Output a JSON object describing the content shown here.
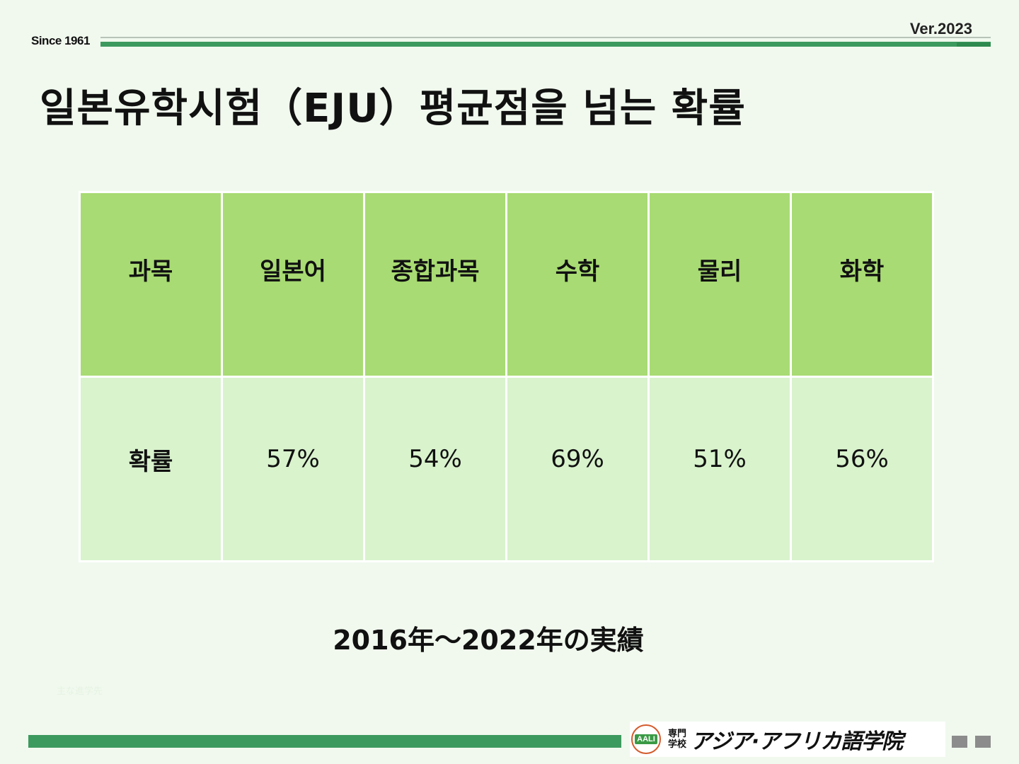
{
  "header": {
    "since": "Since 1961",
    "version": "Ver.2023"
  },
  "title": "일본유학시험（EJU）평균점을 넘는 확률",
  "table": {
    "header": [
      "과목",
      "일본어",
      "종합과목",
      "수학",
      "물리",
      "화학"
    ],
    "row": [
      "확률",
      "57%",
      "54%",
      "69%",
      "51%",
      "56%"
    ]
  },
  "period": "2016年〜2022年の実績",
  "faint_text": "主な進学先",
  "footer": {
    "logo_text": "AALI",
    "senmon_top": "専門",
    "senmon_bottom": "学校",
    "school_name": "アジア·アフリカ語学院"
  },
  "colors": {
    "header_cell": "#a8db73",
    "body_cell": "#d9f3cd",
    "accent_green": "#3d9a5f",
    "background": "#f1f9ee"
  }
}
